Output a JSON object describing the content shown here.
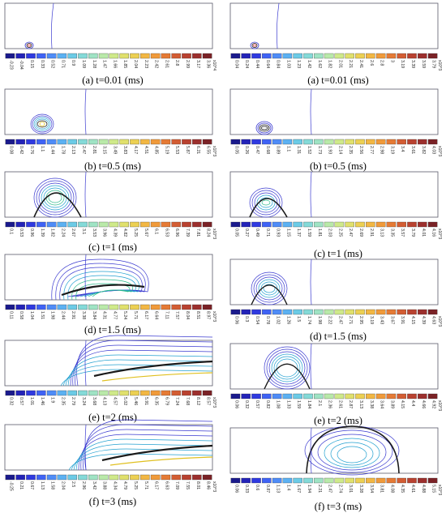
{
  "panels": [
    {
      "id": "L1",
      "caption": "(a) t=0.01 (ms)",
      "exponent": "x10^4",
      "ticks": [
        "-0.23",
        "-0.04",
        "0.15",
        "0.33",
        "0.52",
        "0.71",
        "0.9",
        "1.09",
        "1.28",
        "1.47",
        "1.66",
        "1.85",
        "2.04",
        "2.23",
        "2.42",
        "2.61",
        "2.8",
        "2.99",
        "3.17",
        "3.36"
      ],
      "bubble": "tiny-left",
      "shape": "tiny"
    },
    {
      "id": "R1",
      "caption": "(a) t=0.01 (ms)",
      "exponent": "x10^3",
      "ticks": [
        "0.04",
        "0.24",
        "0.44",
        "0.64",
        "0.84",
        "1.03",
        "1.23",
        "1.42",
        "1.62",
        "1.82",
        "2.01",
        "2.21",
        "2.41",
        "2.6",
        "2.8",
        "3",
        "3.19",
        "3.39",
        "3.59",
        "3.79"
      ],
      "bubble": "tiny-left",
      "shape": "tiny"
    },
    {
      "id": "L2",
      "caption": "(b) t=0.5 (ms)",
      "exponent": "x10^3",
      "ticks": [
        "0.08",
        "0.42",
        "0.76",
        "1.1",
        "1.44",
        "1.78",
        "2.13",
        "2.47",
        "2.81",
        "3.15",
        "3.49",
        "3.83",
        "4.17",
        "4.51",
        "4.85",
        "5.19",
        "5.53",
        "5.87",
        "6.21",
        "6.55"
      ],
      "shape": "small"
    },
    {
      "id": "R2",
      "caption": "(b) t=0.5 (ms)",
      "exponent": "x10^3",
      "ticks": [
        "0.05",
        "0.26",
        "0.47",
        "0.68",
        "0.89",
        "1.1",
        "1.31",
        "1.52",
        "1.73",
        "1.93",
        "2.14",
        "2.35",
        "2.56",
        "2.77",
        "2.98",
        "3.19",
        "3.4",
        "3.61",
        "3.82",
        "4.03"
      ],
      "shape": "smaller"
    },
    {
      "id": "L3",
      "caption": "(c) t=1 (ms)",
      "exponent": "x10^3",
      "ticks": [
        "0.1",
        "0.53",
        "0.96",
        "1.39",
        "1.82",
        "2.24",
        "2.67",
        "3.1",
        "3.53",
        "3.96",
        "4.39",
        "4.82",
        "5.25",
        "5.67",
        "6.1",
        "6.53",
        "6.96",
        "7.39",
        "7.81",
        "8.24"
      ],
      "shape": "medium"
    },
    {
      "id": "R3",
      "caption": "(c) t=1 (ms)",
      "exponent": "x10^3",
      "ticks": [
        "0.05",
        "0.27",
        "0.49",
        "0.71",
        "0.93",
        "1.15",
        "1.37",
        "1.59",
        "1.81",
        "2.03",
        "2.25",
        "2.47",
        "2.69",
        "2.91",
        "3.13",
        "3.35",
        "3.57",
        "3.79",
        "4.01",
        "4.16"
      ],
      "shape": "small2"
    },
    {
      "id": "L4",
      "caption": "(d) t=1.5 (ms)",
      "exponent": "x10^3",
      "ticks": [
        "0.11",
        "0.58",
        "1.04",
        "1.51",
        "1.98",
        "2.44",
        "2.91",
        "3.38",
        "3.84",
        "4.31",
        "4.77",
        "5.24",
        "5.71",
        "6.17",
        "6.64",
        "7.11",
        "7.57",
        "8.04",
        "8.51",
        "8.97"
      ],
      "shape": "big"
    },
    {
      "id": "R4",
      "caption": "(d) t=1.5 (ms)",
      "exponent": "x10^3",
      "ticks": [
        "0.06",
        "0.3",
        "0.54",
        "0.78",
        "1.02",
        "1.26",
        "1.5",
        "1.74",
        "1.98",
        "2.22",
        "2.47",
        "2.71",
        "2.95",
        "3.19",
        "3.43",
        "3.67",
        "3.91",
        "4.15",
        "4.39",
        "4.63"
      ],
      "shape": "medium2"
    },
    {
      "id": "L5",
      "caption": "(e) t=2 (ms)",
      "exponent": "x10^3",
      "ticks": [
        "0.32",
        "0.57",
        "1.01",
        "1.46",
        "1.9",
        "2.35",
        "2.79",
        "3.24",
        "3.68",
        "4.13",
        "4.57",
        "5.02",
        "5.46",
        "5.91",
        "6.35",
        "6.79",
        "7.24",
        "7.68",
        "8.12",
        "8.57"
      ],
      "shape": "long"
    },
    {
      "id": "R5",
      "caption": "(e) t=2 (ms)",
      "exponent": "x10^3",
      "ticks": [
        "0.06",
        "0.32",
        "0.57",
        "0.82",
        "1.08",
        "1.33",
        "1.59",
        "1.84",
        "2.1",
        "2.36",
        "2.61",
        "2.87",
        "3.13",
        "3.38",
        "3.64",
        "3.89",
        "4.15",
        "4.4",
        "4.66",
        "4.92"
      ],
      "shape": "medium3"
    },
    {
      "id": "L6",
      "caption": "(f) t=3 (ms)",
      "exponent": "x10^3",
      "ticks": [
        "-0.25",
        "0.21",
        "0.67",
        "1.13",
        "1.58",
        "2.04",
        "2.5",
        "2.96",
        "3.42",
        "3.88",
        "4.34",
        "4.79",
        "5.25",
        "5.71",
        "6.17",
        "6.63",
        "7.09",
        "7.55",
        "8.01",
        "8.46"
      ],
      "shape": "longer"
    },
    {
      "id": "R6",
      "caption": "(f) t=3 (ms)",
      "exponent": "x10^3",
      "ticks": [
        "0.06",
        "0.33",
        "0.6",
        "0.87",
        "1.13",
        "1.4",
        "1.67",
        "1.94",
        "2.21",
        "2.47",
        "2.74",
        "3.01",
        "3.28",
        "3.54",
        "3.81",
        "4.08",
        "4.35",
        "4.61",
        "4.88",
        "5.15"
      ],
      "shape": "big2"
    }
  ],
  "colors": {
    "frame": "#5a5a6a",
    "contour": "#3b3bd0",
    "inner": "#22a0d0",
    "hot": "#1a1a1a"
  }
}
